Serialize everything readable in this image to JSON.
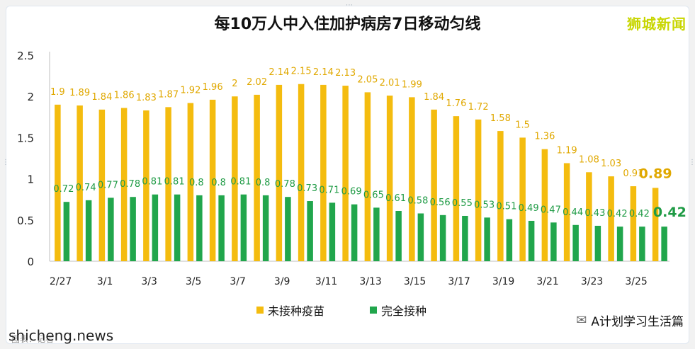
{
  "colors": {
    "unvaccinated": "#f4bc0f",
    "vaccinated": "#21a64c",
    "unvaccinated_label": "#e0a800",
    "vaccinated_label": "#1f9b45"
  },
  "watermark": {
    "brand": "狮城新闻",
    "wechat_icon": "wechat-icon",
    "wechat_text": "A计划学习生活篇",
    "site": "shicheng.news",
    "note": "图表：记者"
  },
  "chart_data": {
    "type": "bar",
    "title": "每10万人中入住加护病房7日移动匀线",
    "xlabel": "",
    "ylabel": "",
    "ylim": [
      0,
      2.5
    ],
    "y_ticks": [
      "0",
      "0.5",
      "1",
      "1.5",
      "2",
      "2.5"
    ],
    "y_tick_values": [
      0,
      0.5,
      1,
      1.5,
      2,
      2.5
    ],
    "grid": false,
    "legend_position": "bottom",
    "categories": [
      "2/27",
      "2/28",
      "3/1",
      "3/2",
      "3/3",
      "3/4",
      "3/5",
      "3/6",
      "3/7",
      "3/8",
      "3/9",
      "3/10",
      "3/11",
      "3/12",
      "3/13",
      "3/14",
      "3/15",
      "3/16",
      "3/17",
      "3/18",
      "3/19",
      "3/20",
      "3/21",
      "3/22",
      "3/23",
      "3/24",
      "3/25",
      "3/26"
    ],
    "x_tick_labels": [
      "2/27",
      "",
      "3/1",
      "",
      "3/3",
      "",
      "3/5",
      "",
      "3/7",
      "",
      "3/9",
      "",
      "3/11",
      "",
      "3/13",
      "",
      "3/15",
      "",
      "3/17",
      "",
      "3/19",
      "",
      "3/21",
      "",
      "3/23",
      "",
      "3/25",
      ""
    ],
    "series": [
      {
        "name": "未接种疫苗",
        "values": [
          1.9,
          1.89,
          1.84,
          1.86,
          1.83,
          1.87,
          1.92,
          1.96,
          2,
          2.02,
          2.14,
          2.15,
          2.14,
          2.13,
          2.05,
          2.01,
          1.99,
          1.84,
          1.76,
          1.72,
          1.58,
          1.5,
          1.36,
          1.19,
          1.08,
          1.03,
          0.91,
          0.89
        ],
        "labels": [
          "1.9",
          "1.89",
          "1.84",
          "1.86",
          "1.83",
          "1.87",
          "1.92",
          "1.96",
          "2",
          "2.02",
          "2.14",
          "2.15",
          "2.14",
          "2.13",
          "2.05",
          "2.01",
          "1.99",
          "1.84",
          "1.76",
          "1.72",
          "1.58",
          "1.5",
          "1.36",
          "1.19",
          "1.08",
          "1.03",
          "0.91",
          "0.89"
        ]
      },
      {
        "name": "完全接种",
        "values": [
          0.72,
          0.74,
          0.77,
          0.78,
          0.81,
          0.81,
          0.8,
          0.8,
          0.81,
          0.8,
          0.78,
          0.73,
          0.71,
          0.69,
          0.65,
          0.61,
          0.58,
          0.56,
          0.55,
          0.53,
          0.51,
          0.49,
          0.47,
          0.44,
          0.43,
          0.42,
          0.42,
          0.42
        ],
        "labels": [
          "0.72",
          "0.74",
          "0.77",
          "0.78",
          "0.81",
          "0.81",
          "0.8",
          "0.8",
          "0.81",
          "0.8",
          "0.78",
          "0.73",
          "0.71",
          "0.69",
          "0.65",
          "0.61",
          "0.58",
          "0.56",
          "0.55",
          "0.53",
          "0.51",
          "0.49",
          "0.47",
          "0.44",
          "0.43",
          "0.42",
          "0.42",
          "0.42"
        ]
      }
    ]
  }
}
